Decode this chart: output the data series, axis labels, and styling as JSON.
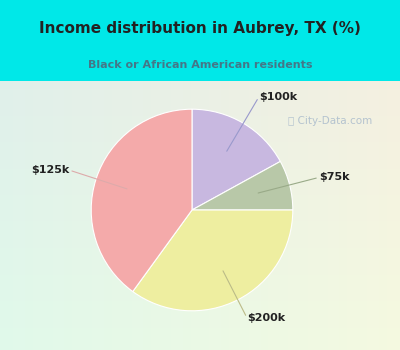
{
  "title": "Income distribution in Aubrey, TX (%)",
  "subtitle": "Black or African American residents",
  "slices": [
    {
      "label": "$100k",
      "value": 17,
      "color": "#c8b8e0"
    },
    {
      "label": "$75k",
      "value": 8,
      "color": "#b8c8a8"
    },
    {
      "label": "$200k",
      "value": 35,
      "color": "#eeeea0"
    },
    {
      "label": "$125k",
      "value": 40,
      "color": "#f4aaaa"
    }
  ],
  "bg_cyan": "#00e8e8",
  "title_color": "#222222",
  "subtitle_color": "#447788",
  "label_color": "#222222",
  "line_color_100k": "#9999cc",
  "line_color_75k": "#99aa88",
  "line_color_200k": "#bbbb88",
  "line_color_125k": "#ddaaaa",
  "watermark_color": "#aabbcc",
  "inner_bg_top_left": "#d8eeee",
  "inner_bg_bot_right": "#d0eedd"
}
